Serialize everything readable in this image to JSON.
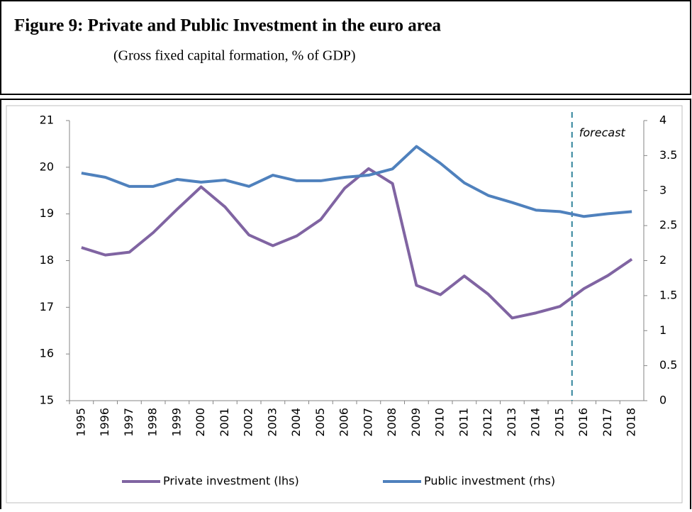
{
  "chart_data": {
    "type": "line",
    "title": "Figure 9: Private and Public Investment in the euro area",
    "subtitle": "(Gross fixed capital formation, % of GDP)",
    "categories": [
      "1995",
      "1996",
      "1997",
      "1998",
      "1999",
      "2000",
      "2001",
      "2002",
      "2003",
      "2004",
      "2005",
      "2006",
      "2007",
      "2008",
      "2009",
      "2010",
      "2011",
      "2012",
      "2013",
      "2014",
      "2015",
      "2016",
      "2017",
      "2018"
    ],
    "series": [
      {
        "name": "Private investment (lhs)",
        "color": "#8064a2",
        "axis": "y",
        "values": [
          18.28,
          18.12,
          18.18,
          18.6,
          19.1,
          19.58,
          19.15,
          18.55,
          18.32,
          18.53,
          18.88,
          19.55,
          19.97,
          19.65,
          17.47,
          17.27,
          17.67,
          17.28,
          16.77,
          16.88,
          17.02,
          17.4,
          17.68,
          18.03
        ]
      },
      {
        "name": "Public investment (rhs)",
        "color": "#4f81bd",
        "axis": "y2",
        "values": [
          3.25,
          3.19,
          3.06,
          3.06,
          3.16,
          3.12,
          3.15,
          3.06,
          3.22,
          3.14,
          3.14,
          3.19,
          3.22,
          3.31,
          3.63,
          3.39,
          3.11,
          2.93,
          2.83,
          2.72,
          2.7,
          2.63,
          2.67,
          2.7
        ]
      }
    ],
    "ylim": [
      15,
      21
    ],
    "yticks": [
      15,
      16,
      17,
      18,
      19,
      20,
      21
    ],
    "y2lim": [
      0,
      4
    ],
    "y2ticks": [
      0,
      0.5,
      1,
      1.5,
      2,
      2.5,
      3,
      3.5,
      4
    ],
    "annotation": {
      "text": "forecast",
      "x": "2016"
    },
    "legend": "bottom"
  }
}
